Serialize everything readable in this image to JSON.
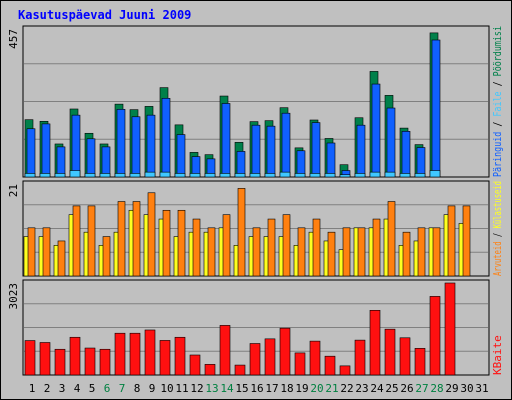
{
  "title": "Kasutuspäevad Juuni 2009",
  "colors": {
    "background": "#c0c0c0",
    "border": "#000000",
    "gridline": "#808080",
    "title_text": "#0000ff",
    "pages": "#00804a",
    "hits": "#1060ff",
    "files": "#40c8ff",
    "visits": "#ff8010",
    "sites": "#ffff20",
    "kbytes": "#ff1010",
    "weekend_label": "#008040",
    "weekday_label": "#000000"
  },
  "chart_data": [
    {
      "type": "bar",
      "panel": "hits",
      "ymax_label": "457",
      "ylim": [
        0,
        457
      ],
      "categories": [
        "1",
        "2",
        "3",
        "4",
        "5",
        "6",
        "7",
        "8",
        "9",
        "10",
        "11",
        "12",
        "13",
        "14",
        "15",
        "16",
        "17",
        "18",
        "19",
        "20",
        "21",
        "22",
        "23",
        "24",
        "25",
        "26",
        "27",
        "28",
        "29",
        "30",
        "31"
      ],
      "weekend_days": [
        "6",
        "7",
        "13",
        "14",
        "20",
        "21",
        "27",
        "28"
      ],
      "legend": [
        "Päringuid",
        "Faile",
        "Pöördumisi"
      ],
      "series": [
        {
          "name": "Pöördumisi",
          "color": "#00804a",
          "values": [
            177,
            172,
            102,
            210,
            135,
            102,
            225,
            208,
            218,
            276,
            161,
            76,
            69,
            250,
            107,
            171,
            174,
            214,
            90,
            176,
            119,
            38,
            183,
            326,
            252,
            151,
            100,
            445,
            0,
            0,
            0
          ]
        },
        {
          "name": "Päringuid",
          "color": "#1060ff",
          "values": [
            149,
            164,
            93,
            191,
            118,
            93,
            209,
            186,
            191,
            243,
            131,
            63,
            56,
            227,
            79,
            160,
            157,
            197,
            81,
            168,
            105,
            20,
            160,
            287,
            213,
            141,
            91,
            423,
            0,
            0,
            0
          ]
        },
        {
          "name": "Faile",
          "color": "#40c8ff",
          "values": [
            11,
            11,
            11,
            20,
            11,
            11,
            11,
            11,
            15,
            15,
            11,
            11,
            11,
            11,
            11,
            11,
            11,
            15,
            11,
            11,
            11,
            7,
            11,
            15,
            15,
            11,
            11,
            20,
            0,
            0,
            0
          ]
        }
      ]
    },
    {
      "type": "bar",
      "panel": "visits",
      "ymax_label": "21",
      "ylim": [
        0,
        21
      ],
      "categories": [
        "1",
        "2",
        "3",
        "4",
        "5",
        "6",
        "7",
        "8",
        "9",
        "10",
        "11",
        "12",
        "13",
        "14",
        "15",
        "16",
        "17",
        "18",
        "19",
        "20",
        "21",
        "22",
        "23",
        "24",
        "25",
        "26",
        "27",
        "28",
        "29",
        "30",
        "31"
      ],
      "legend": [
        "Arvuteid",
        "Külastuseid"
      ],
      "series": [
        {
          "name": "Külastuseid",
          "color": "#ffff20",
          "values": [
            9,
            9,
            7,
            14,
            10,
            7,
            10,
            15,
            14,
            13,
            9,
            10,
            10,
            11,
            7,
            9,
            9,
            9,
            7,
            10,
            8,
            6,
            11,
            11,
            13,
            7,
            8,
            11,
            14,
            12,
            0
          ]
        },
        {
          "name": "Arvuteid",
          "color": "#ff8010",
          "values": [
            11,
            11,
            8,
            16,
            16,
            9,
            17,
            17,
            19,
            15,
            15,
            13,
            11,
            14,
            20,
            11,
            13,
            14,
            11,
            13,
            10,
            11,
            11,
            13,
            17,
            10,
            11,
            11,
            16,
            16,
            0
          ]
        }
      ]
    },
    {
      "type": "bar",
      "panel": "kbytes",
      "ymax_label": "3023",
      "ylim": [
        0,
        3023
      ],
      "categories": [
        "1",
        "2",
        "3",
        "4",
        "5",
        "6",
        "7",
        "8",
        "9",
        "10",
        "11",
        "12",
        "13",
        "14",
        "15",
        "16",
        "17",
        "18",
        "19",
        "20",
        "21",
        "22",
        "23",
        "24",
        "25",
        "26",
        "27",
        "28",
        "29",
        "30",
        "31"
      ],
      "legend": [
        "KBaite"
      ],
      "series": [
        {
          "name": "KBaite",
          "color": "#ff1010",
          "values": [
            1132,
            1068,
            846,
            1240,
            886,
            846,
            1373,
            1373,
            1479,
            1136,
            1240,
            657,
            350,
            1630,
            326,
            1035,
            1188,
            1539,
            726,
            1113,
            618,
            300,
            1146,
            2126,
            1506,
            1223,
            876,
            2583,
            3023,
            0,
            0
          ]
        }
      ]
    }
  ]
}
